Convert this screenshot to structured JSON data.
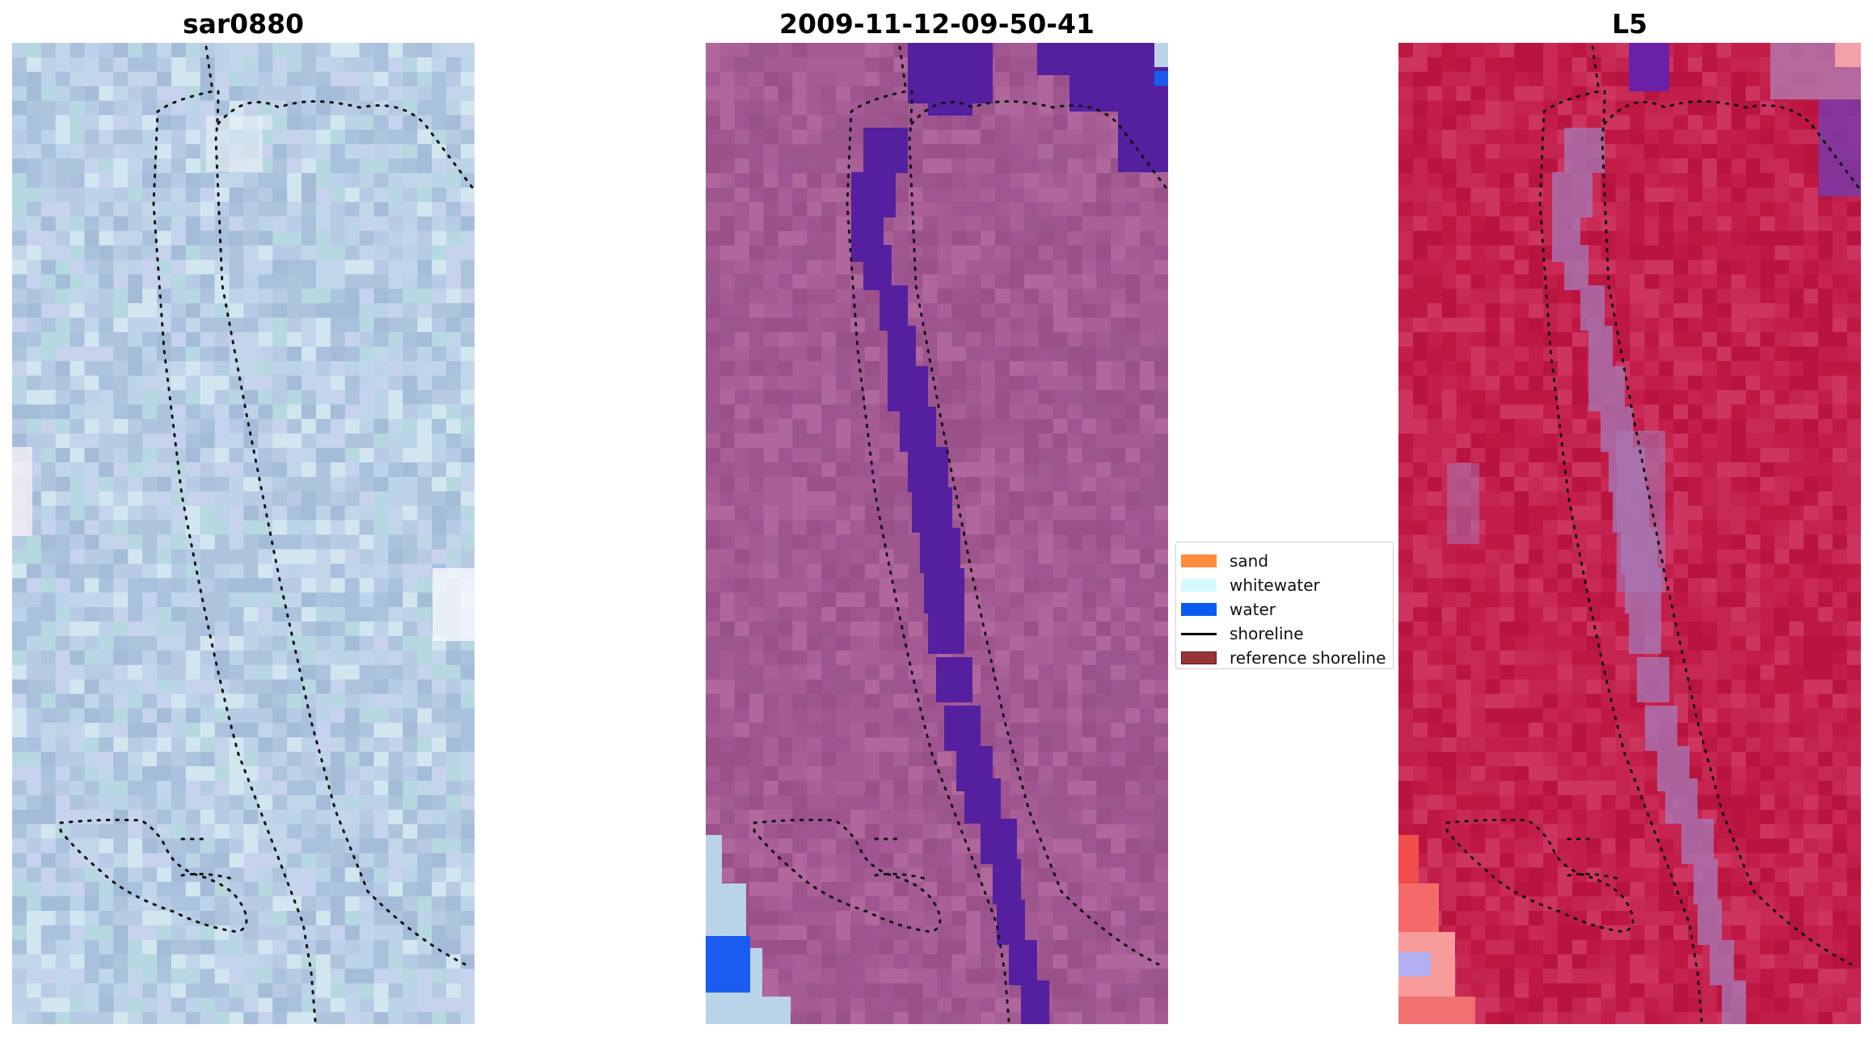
{
  "panels": [
    {
      "title": "sar0880",
      "base_color": "#b4c6de",
      "tile_palette": [
        "#b8cbe4",
        "#aec4dc",
        "#c2d6ea",
        "#a9c1dd",
        "#bcd3e8",
        "#b6d8e0",
        "#c7d2ec",
        "#a4bcd8",
        "#d2e6f0"
      ]
    },
    {
      "title": "2009-11-12-09-50-41",
      "base_color": "#a05890",
      "tile_palette": [
        "#9f5590",
        "#a45b93",
        "#9a5089",
        "#a86096",
        "#9d558e",
        "#b0689c"
      ]
    },
    {
      "title": "L5",
      "base_color": "#c41f4a",
      "tile_palette": [
        "#c31e4a",
        "#c92a55",
        "#be1842",
        "#cd3560",
        "#c52450",
        "#b91440"
      ]
    }
  ],
  "overlay_colors": {
    "water_class": "#5420a0",
    "water_blue": "#1a5cf0",
    "light_blue": "#b9d3e8",
    "strip_violet": "#a67ab8",
    "strip_red": "#f24c4c",
    "shoreline_dots": "#111111"
  },
  "legend": {
    "items": [
      {
        "label": "sand",
        "color": "#ff8c3a",
        "kind": "patch"
      },
      {
        "label": "whitewater",
        "color": "#d6fbff",
        "kind": "patch"
      },
      {
        "label": "water",
        "color": "#0a5cf0",
        "kind": "patch"
      },
      {
        "label": "shoreline",
        "color": "#000000",
        "kind": "line"
      },
      {
        "label": "reference shoreline",
        "color": "#983438",
        "kind": "patch"
      }
    ]
  }
}
